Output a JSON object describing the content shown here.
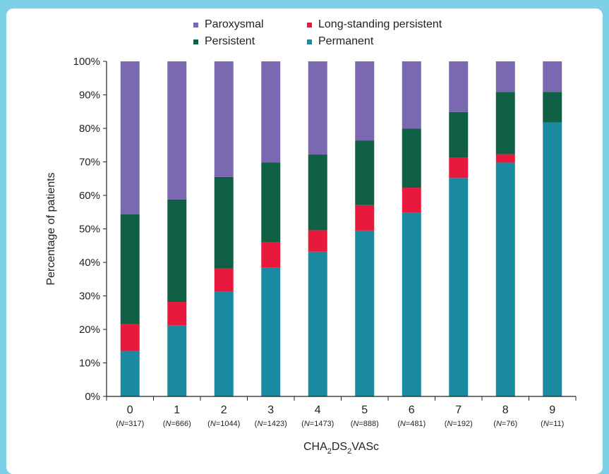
{
  "chart_data": {
    "type": "bar",
    "stacked": true,
    "categories": [
      "0",
      "1",
      "2",
      "3",
      "4",
      "5",
      "6",
      "7",
      "8",
      "9"
    ],
    "category_counts": [
      "(N=317)",
      "(N=666)",
      "(N=1044)",
      "(N=1423)",
      "(N=1473)",
      "(N=888)",
      "(N=481)",
      "(N=192)",
      "(N=76)",
      "(N=11)"
    ],
    "series": [
      {
        "name": "Permanent",
        "color": "#1a8aa0",
        "values": [
          13.5,
          21.2,
          31.2,
          38.5,
          43.2,
          49.5,
          54.8,
          65.2,
          69.8,
          81.8
        ]
      },
      {
        "name": "Long-standing persistent",
        "color": "#e8193c",
        "values": [
          8.0,
          7.0,
          7.0,
          7.6,
          6.4,
          7.6,
          7.5,
          6.0,
          2.5,
          0.0
        ]
      },
      {
        "name": "Persistent",
        "color": "#106045",
        "values": [
          32.9,
          30.6,
          27.3,
          23.7,
          22.6,
          19.3,
          17.6,
          13.7,
          18.6,
          9.1
        ]
      },
      {
        "name": "Paroxysmal",
        "color": "#7a68b0",
        "values": [
          45.6,
          41.2,
          34.5,
          30.2,
          27.8,
          23.6,
          20.1,
          15.1,
          9.1,
          9.1
        ]
      }
    ],
    "legend_order": [
      "Paroxysmal",
      "Long-standing persistent",
      "Persistent",
      "Permanent"
    ],
    "legend_placement": "top",
    "ylim": [
      0,
      100
    ],
    "yticks": [
      "0%",
      "10%",
      "20%",
      "30%",
      "40%",
      "50%",
      "60%",
      "70%",
      "80%",
      "90%",
      "100%"
    ],
    "ylabel": "Percentage of patients",
    "xlabel": {
      "main": "CHA",
      "sub1": "2",
      "mid": "DS",
      "sub2": "2",
      "tail": "VASc"
    },
    "grid": false
  }
}
